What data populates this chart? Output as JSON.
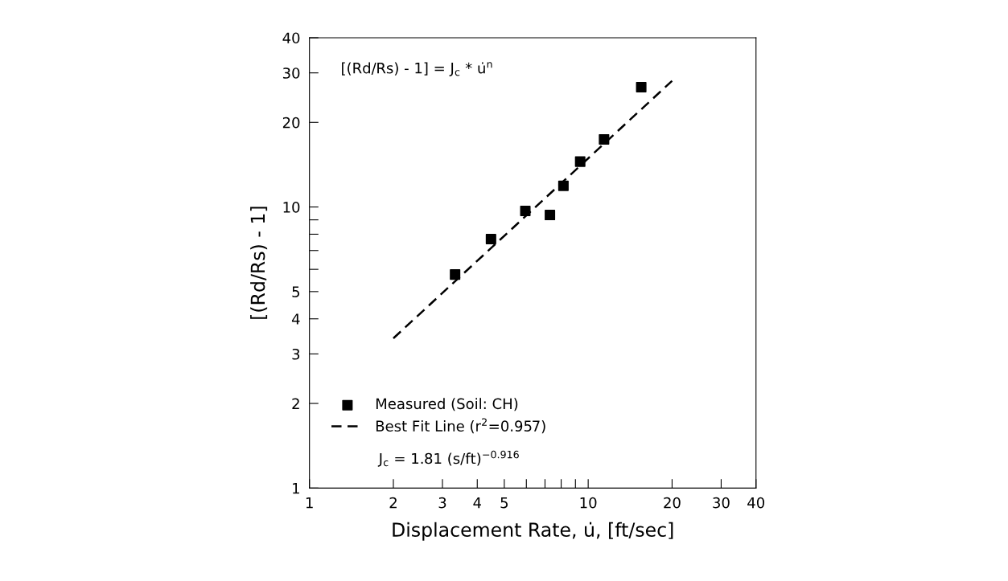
{
  "chart_data": {
    "type": "scatter",
    "xlabel": "Displacement Rate, u̇, [ft/sec]",
    "ylabel": "[(Rd/Rs) - 1]",
    "log": "xy",
    "xlim": [
      1,
      40
    ],
    "ylim": [
      1,
      40
    ],
    "xticks": [
      1,
      2,
      3,
      4,
      5,
      {
        "value": 6,
        "label": null
      },
      {
        "value": 7,
        "label": null
      },
      {
        "value": 8,
        "label": null
      },
      {
        "value": 9,
        "label": null
      },
      10,
      20,
      30,
      40
    ],
    "yticks": [
      1,
      2,
      3,
      4,
      5,
      {
        "value": 6,
        "label": null
      },
      {
        "value": 7,
        "label": null
      },
      {
        "value": 8,
        "label": null
      },
      {
        "value": 9,
        "label": null
      },
      10,
      20,
      30,
      40
    ],
    "grid": false,
    "legend": "bottom left",
    "marker": "square",
    "series": [
      {
        "name": "Measured (Soil: CH)",
        "color": "#000000",
        "x": [
          3.33,
          4.48,
          5.95,
          7.29,
          8.15,
          9.36,
          11.4,
          15.5
        ],
        "values": [
          5.75,
          7.69,
          9.68,
          9.36,
          11.9,
          14.5,
          17.4,
          26.7
        ]
      },
      {
        "name": "Best Fit Line (r$^{2}$=0.957)",
        "color": "#000000",
        "type": "line",
        "line_style": "dashed",
        "marker": "none",
        "x": [
          2,
          20
        ],
        "values": [
          3.41,
          28.1
        ]
      }
    ],
    "annotations": [
      "[(Rd/Rs) - 1] = J$_{c}$ * u̇$^{n}$",
      "J$_{c}$ = 1.81 (s/ft)$^{−0.916}$"
    ]
  }
}
